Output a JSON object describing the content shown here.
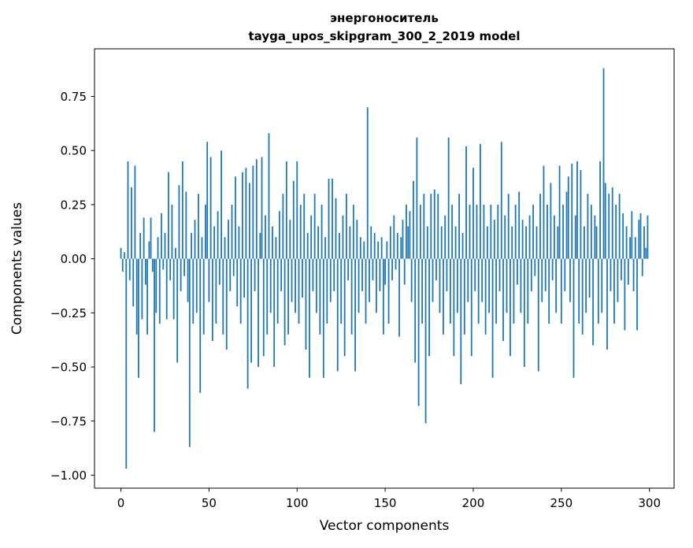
{
  "chart_data": {
    "type": "bar",
    "title": "энергоноситель",
    "subtitle": "tayga_upos_skipgram_300_2_2019 model",
    "xlabel": "Vector components",
    "ylabel": "Components values",
    "bar_color": "#1f77b4",
    "axis_color": "#000000",
    "xlim": [
      -15,
      314
    ],
    "ylim": [
      -1.06,
      0.97
    ],
    "xticks": [
      0,
      50,
      100,
      150,
      200,
      250,
      300
    ],
    "yticks": [
      -1.0,
      -0.75,
      -0.5,
      -0.25,
      0.0,
      0.25,
      0.5,
      0.75
    ],
    "legend": "none",
    "grid": false,
    "values": [
      0.05,
      -0.06,
      0.03,
      -0.97,
      0.45,
      -0.1,
      0.33,
      -0.22,
      0.43,
      -0.35,
      -0.55,
      0.12,
      -0.28,
      0.19,
      -0.12,
      -0.35,
      0.08,
      0.19,
      -0.06,
      -0.8,
      -0.25,
      0.1,
      -0.3,
      0.21,
      -0.05,
      0.12,
      -0.28,
      0.4,
      -0.1,
      0.25,
      -0.28,
      0.05,
      -0.48,
      0.34,
      -0.15,
      0.45,
      -0.08,
      0.31,
      -0.2,
      -0.87,
      0.12,
      -0.3,
      0.18,
      -0.25,
      0.3,
      -0.62,
      0.1,
      -0.35,
      0.25,
      0.54,
      -0.2,
      0.47,
      -0.38,
      0.15,
      -0.3,
      0.22,
      -0.12,
      0.5,
      -0.35,
      0.1,
      -0.42,
      0.18,
      -0.15,
      0.25,
      -0.08,
      0.38,
      -0.22,
      0.15,
      -0.3,
      0.4,
      -0.18,
      0.42,
      -0.6,
      0.35,
      -0.48,
      0.43,
      -0.15,
      0.46,
      -0.5,
      0.12,
      0.47,
      -0.45,
      0.2,
      -0.35,
      0.58,
      -0.25,
      0.15,
      -0.5,
      0.1,
      -0.3,
      0.22,
      -0.15,
      0.3,
      -0.4,
      0.45,
      -0.35,
      0.18,
      -0.2,
      0.36,
      -0.25,
      0.45,
      -0.3,
      0.25,
      -0.18,
      0.3,
      -0.42,
      0.12,
      -0.55,
      0.2,
      -0.15,
      0.3,
      -0.25,
      0.15,
      -0.35,
      0.25,
      -0.55,
      0.1,
      -0.3,
      0.37,
      -0.2,
      0.37,
      -0.15,
      0.28,
      -0.52,
      0.12,
      -0.3,
      0.2,
      -0.45,
      0.3,
      -0.1,
      0.15,
      -0.35,
      0.25,
      -0.52,
      0.18,
      -0.25,
      0.1,
      -0.15,
      0.08,
      -0.3,
      0.7,
      -0.2,
      0.15,
      -0.1,
      0.12,
      -0.25,
      0.08,
      -0.15,
      0.1,
      -0.35,
      -0.12,
      0.08,
      -0.3,
      0.15,
      -0.1,
      0.2,
      -0.05,
      0.12,
      -0.36,
      0.1,
      0.18,
      -0.12,
      0.25,
      0.15,
      0.22,
      -0.2,
      0.36,
      -0.48,
      0.56,
      -0.68,
      0.25,
      -0.3,
      0.3,
      -0.76,
      0.15,
      -0.45,
      0.3,
      -0.2,
      0.32,
      -0.1,
      0.3,
      -0.25,
      0.15,
      -0.35,
      0.2,
      -0.15,
      0.56,
      -0.3,
      0.25,
      -0.45,
      0.15,
      -0.25,
      0.3,
      -0.58,
      0.12,
      -0.35,
      0.52,
      -0.2,
      0.25,
      -0.45,
      0.42,
      -0.15,
      0.25,
      -0.3,
      0.53,
      -0.2,
      0.25,
      -0.35,
      0.15,
      -0.25,
      0.25,
      -0.55,
      0.18,
      -0.3,
      0.25,
      -0.15,
      0.54,
      -0.38,
      0.2,
      -0.25,
      0.3,
      -0.45,
      0.15,
      -0.3,
      0.25,
      -0.12,
      0.31,
      -0.25,
      0.18,
      -0.5,
      0.15,
      -0.3,
      0.2,
      -0.15,
      0.25,
      -0.08,
      0.15,
      -0.52,
      0.3,
      -0.2,
      0.43,
      -0.15,
      0.25,
      -0.3,
      0.35,
      -0.1,
      0.2,
      -0.25,
      0.15,
      0.43,
      -0.3,
      0.25,
      -0.15,
      0.31,
      0.38,
      -0.2,
      0.44,
      -0.55,
      0.2,
      0.45,
      -0.3,
      0.41,
      -0.35,
      0.15,
      -0.25,
      0.3,
      -0.18,
      0.25,
      -0.4,
      0.2,
      0.15,
      -0.3,
      0.45,
      -0.25,
      0.88,
      0.35,
      -0.42,
      0.3,
      -0.15,
      0.33,
      -0.3,
      0.25,
      -0.2,
      0.3,
      -0.1,
      0.21,
      -0.33,
      0.15,
      -0.12,
      0.1,
      0.22,
      -0.15,
      0.1,
      -0.33,
      0.18,
      0.21,
      -0.08,
      0.15,
      0.05,
      0.2
    ]
  }
}
